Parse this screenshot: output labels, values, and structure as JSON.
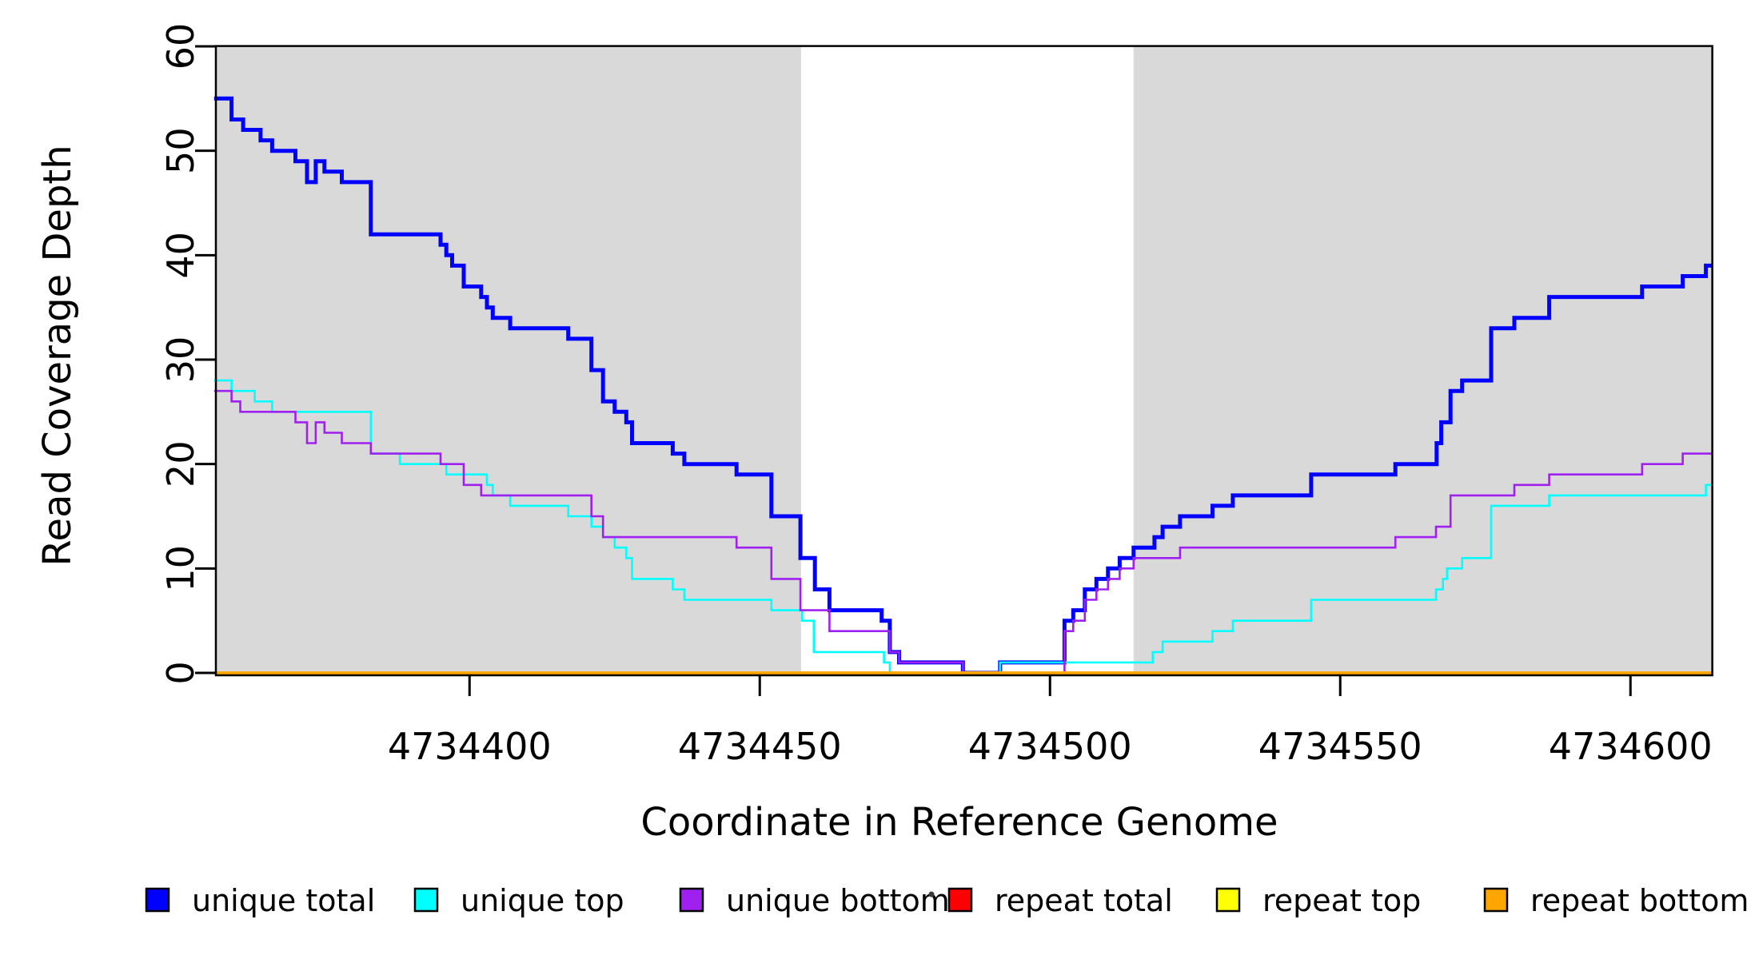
{
  "chart_data": {
    "type": "line",
    "subtype": "step-after",
    "title": "",
    "xlabel": "Coordinate in Reference Genome",
    "ylabel": "Read Coverage Depth",
    "xlim": [
      4734356.3,
      4734614.1
    ],
    "ylim": [
      0,
      60
    ],
    "x_ticks": [
      4734400,
      4734450,
      4734500,
      4734550,
      4734600
    ],
    "y_ticks": [
      0,
      10,
      20,
      30,
      40,
      50,
      60
    ],
    "grid": false,
    "legend_position": "bottom",
    "background_color": "#ffffff",
    "shaded_regions": [
      {
        "x0": 4734356.3,
        "x1": 4734457.1,
        "color": "#D9D9D9"
      },
      {
        "x0": 4734514.4,
        "x1": 4734614.1,
        "color": "#D9D9D9"
      }
    ],
    "series": [
      {
        "name": "unique total",
        "color": "#0000FF",
        "width": 5,
        "points": [
          [
            4734356,
            55
          ],
          [
            4734359,
            53
          ],
          [
            4734361,
            52
          ],
          [
            4734364,
            51
          ],
          [
            4734366,
            50
          ],
          [
            4734370,
            49
          ],
          [
            4734372,
            47
          ],
          [
            4734373.5,
            49
          ],
          [
            4734375,
            48
          ],
          [
            4734378,
            47
          ],
          [
            4734383,
            42
          ],
          [
            4734395,
            41
          ],
          [
            4734396,
            40
          ],
          [
            4734397,
            39
          ],
          [
            4734399,
            37
          ],
          [
            4734402,
            36
          ],
          [
            4734403,
            35
          ],
          [
            4734404,
            34
          ],
          [
            4734407,
            33
          ],
          [
            4734417,
            32
          ],
          [
            4734421,
            29
          ],
          [
            4734423,
            26
          ],
          [
            4734425,
            25
          ],
          [
            4734427,
            24
          ],
          [
            4734428,
            22
          ],
          [
            4734435,
            21
          ],
          [
            4734437,
            20
          ],
          [
            4734446,
            19
          ],
          [
            4734452,
            15
          ],
          [
            4734457,
            11
          ],
          [
            4734459.5,
            8
          ],
          [
            4734462,
            6
          ],
          [
            4734471,
            5
          ],
          [
            4734472.4,
            2
          ],
          [
            4734474,
            1
          ],
          [
            4734485,
            0
          ],
          [
            4734491.4,
            1
          ],
          [
            4734502.5,
            5
          ],
          [
            4734504,
            6
          ],
          [
            4734506,
            8
          ],
          [
            4734508,
            9
          ],
          [
            4734510,
            10
          ],
          [
            4734512,
            11
          ],
          [
            4734514.4,
            12
          ],
          [
            4734518,
            13
          ],
          [
            4734519.4,
            14
          ],
          [
            4734522.4,
            15
          ],
          [
            4734528,
            16
          ],
          [
            4734531.5,
            17
          ],
          [
            4734545,
            19
          ],
          [
            4734559.5,
            20
          ],
          [
            4734566.6,
            22
          ],
          [
            4734567.4,
            24
          ],
          [
            4734569,
            27
          ],
          [
            4734571,
            28
          ],
          [
            4734576,
            33
          ],
          [
            4734580,
            34
          ],
          [
            4734586,
            36
          ],
          [
            4734602,
            37
          ],
          [
            4734609,
            38
          ],
          [
            4734613,
            39
          ]
        ]
      },
      {
        "name": "unique top",
        "color": "#00FFFF",
        "width": 2.6,
        "points": [
          [
            4734356,
            28
          ],
          [
            4734359,
            27
          ],
          [
            4734363,
            26
          ],
          [
            4734366,
            25
          ],
          [
            4734383,
            21
          ],
          [
            4734388,
            20
          ],
          [
            4734396,
            19
          ],
          [
            4734403,
            18
          ],
          [
            4734404,
            17
          ],
          [
            4734407,
            16
          ],
          [
            4734417,
            15
          ],
          [
            4734421,
            14
          ],
          [
            4734423,
            13
          ],
          [
            4734425,
            12
          ],
          [
            4734427,
            11
          ],
          [
            4734428,
            9
          ],
          [
            4734435,
            8
          ],
          [
            4734437,
            7
          ],
          [
            4734452,
            6
          ],
          [
            4734457.3,
            5
          ],
          [
            4734459.3,
            2
          ],
          [
            4734471.4,
            1
          ],
          [
            4734472.4,
            0
          ],
          [
            4734491.4,
            1
          ],
          [
            4734517.7,
            2
          ],
          [
            4734519.4,
            3
          ],
          [
            4734528,
            4
          ],
          [
            4734531.5,
            5
          ],
          [
            4734545,
            7
          ],
          [
            4734566.5,
            8
          ],
          [
            4734567.7,
            9
          ],
          [
            4734568.4,
            10
          ],
          [
            4734571,
            11
          ],
          [
            4734576,
            16
          ],
          [
            4734586,
            17
          ],
          [
            4734613,
            18
          ]
        ]
      },
      {
        "name": "unique bottom",
        "color": "#A020F0",
        "width": 2.6,
        "points": [
          [
            4734356,
            27
          ],
          [
            4734359,
            26
          ],
          [
            4734360.5,
            25
          ],
          [
            4734370,
            24
          ],
          [
            4734372,
            22
          ],
          [
            4734373.5,
            24
          ],
          [
            4734375,
            23
          ],
          [
            4734378,
            22
          ],
          [
            4734383,
            21
          ],
          [
            4734395,
            20
          ],
          [
            4734399,
            18
          ],
          [
            4734402,
            17
          ],
          [
            4734421,
            15
          ],
          [
            4734423,
            13
          ],
          [
            4734446,
            12
          ],
          [
            4734452,
            9
          ],
          [
            4734457,
            6
          ],
          [
            4734462,
            4
          ],
          [
            4734472.4,
            2
          ],
          [
            4734474,
            1
          ],
          [
            4734485,
            0
          ],
          [
            4734502.5,
            4
          ],
          [
            4734504,
            5
          ],
          [
            4734506,
            7
          ],
          [
            4734508,
            8
          ],
          [
            4734510,
            9
          ],
          [
            4734512,
            10
          ],
          [
            4734514.4,
            11
          ],
          [
            4734522.4,
            12
          ],
          [
            4734559.5,
            13
          ],
          [
            4734566.5,
            14
          ],
          [
            4734569,
            17
          ],
          [
            4734580,
            18
          ],
          [
            4734586,
            19
          ],
          [
            4734602,
            20
          ],
          [
            4734609,
            21
          ]
        ]
      },
      {
        "name": "repeat total",
        "color": "#FF0000",
        "width": 3.5,
        "points": [
          [
            4734356,
            0
          ]
        ]
      },
      {
        "name": "repeat top",
        "color": "#FFFF00",
        "width": 3.5,
        "points": [
          [
            4734356,
            0
          ]
        ]
      },
      {
        "name": "repeat bottom",
        "color": "#FFA500",
        "width": 3.5,
        "points": [
          [
            4734356,
            0
          ]
        ]
      }
    ],
    "legend": [
      {
        "label": "unique total",
        "color": "#0000FF"
      },
      {
        "label": "unique top",
        "color": "#00FFFF"
      },
      {
        "label": "unique bottom",
        "color": "#A020F0"
      },
      {
        "label": "repeat total",
        "color": "#FF0000"
      },
      {
        "label": "repeat top",
        "color": "#FFFF00"
      },
      {
        "label": "repeat bottom",
        "color": "#FFA500"
      }
    ]
  }
}
